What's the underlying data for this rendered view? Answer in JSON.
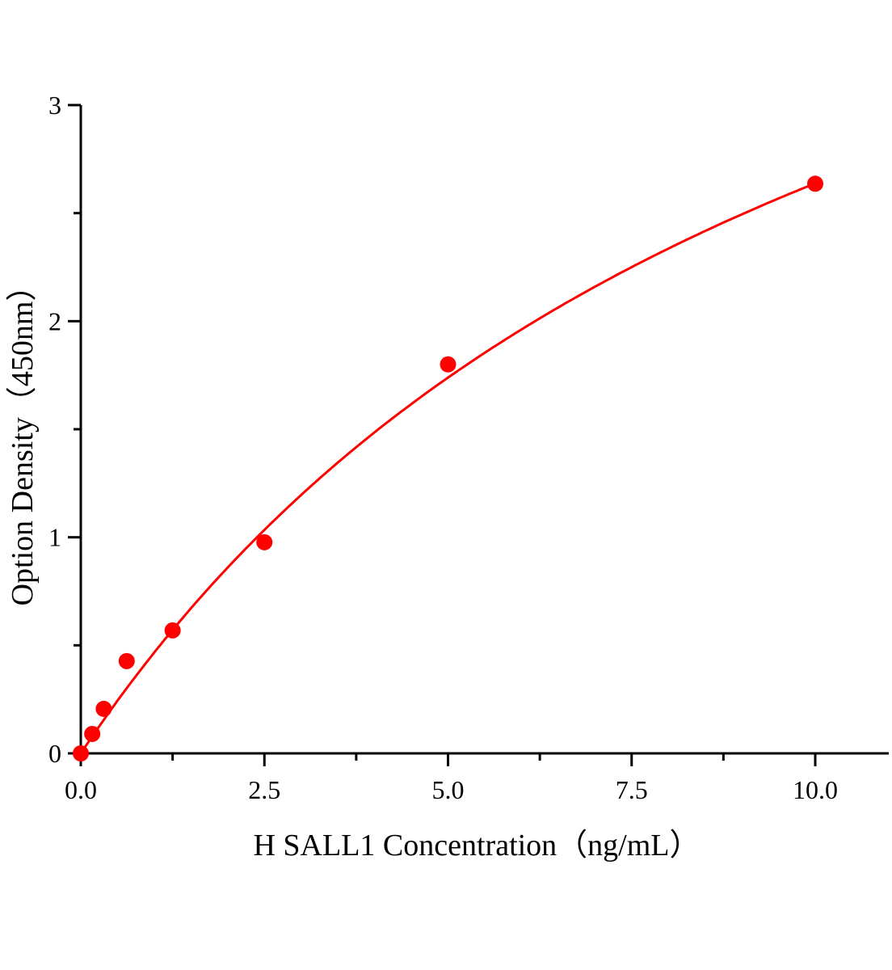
{
  "chart_data": {
    "type": "scatter",
    "title": "",
    "xlabel": "H SALL1 Concentration（ng/mL）",
    "ylabel": "Option Density（450nm）",
    "xlim": [
      0,
      11
    ],
    "ylim": [
      0,
      3
    ],
    "x_ticks": [
      0,
      2.5,
      5,
      7.5,
      10
    ],
    "x_tick_labels": [
      "0.0",
      "2.5",
      "5.0",
      "7.5",
      "10.0"
    ],
    "x_minor_ticks": [
      1.25,
      3.75,
      6.25,
      8.75
    ],
    "y_ticks": [
      0,
      1,
      2,
      3
    ],
    "y_tick_labels": [
      "0",
      "1",
      "2",
      "3"
    ],
    "y_minor_ticks": [
      0.5,
      1.5,
      2.5
    ],
    "grid": false,
    "color": "#ff0000",
    "points": {
      "x": [
        0,
        0.156,
        0.3125,
        0.625,
        1.25,
        2.5,
        5,
        10
      ],
      "y": [
        0,
        0.09,
        0.206,
        0.427,
        0.569,
        0.977,
        1.8,
        2.636
      ]
    },
    "fit_curve": {
      "type": "smooth fitted curve",
      "x_range": [
        0,
        10
      ]
    }
  }
}
